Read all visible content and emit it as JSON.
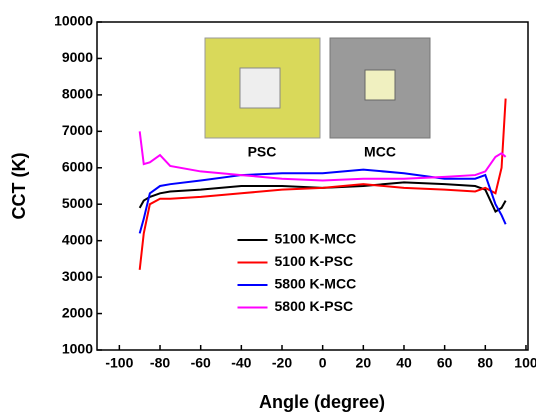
{
  "chart_data": {
    "type": "line",
    "xlabel": "Angle (degree)",
    "ylabel": "CCT (K)",
    "insets": [
      "PSC",
      "MCC"
    ],
    "x": [
      -90,
      -88,
      -85,
      -80,
      -75,
      -60,
      -40,
      -20,
      0,
      20,
      40,
      60,
      75,
      80,
      85,
      88,
      90
    ],
    "series": [
      {
        "name": "5100 K-MCC",
        "color": "#000000",
        "values": [
          4900,
          5100,
          5200,
          5300,
          5350,
          5400,
          5500,
          5500,
          5450,
          5500,
          5600,
          5550,
          5500,
          5400,
          4800,
          4900,
          5100
        ]
      },
      {
        "name": "5100 K-PSC",
        "color": "#ff0000",
        "values": [
          3200,
          4200,
          5000,
          5150,
          5150,
          5200,
          5300,
          5400,
          5450,
          5550,
          5450,
          5400,
          5350,
          5450,
          5300,
          6000,
          7900
        ]
      },
      {
        "name": "5800 K-MCC",
        "color": "#0000ff",
        "values": [
          4200,
          4600,
          5300,
          5500,
          5550,
          5650,
          5800,
          5850,
          5850,
          5950,
          5850,
          5700,
          5700,
          5800,
          5000,
          4700,
          4450
        ]
      },
      {
        "name": "5800 K-PSC",
        "color": "#ff00ff",
        "values": [
          7000,
          6100,
          6150,
          6350,
          6050,
          5900,
          5800,
          5700,
          5650,
          5700,
          5700,
          5750,
          5800,
          5900,
          6300,
          6400,
          6300
        ]
      }
    ],
    "xlim": [
      -111,
      101
    ],
    "ylim": [
      1000,
      10000
    ],
    "xticks": [
      -100,
      -80,
      -60,
      -40,
      -20,
      0,
      20,
      40,
      60,
      80,
      100
    ],
    "yticks": [
      1000,
      2000,
      3000,
      4000,
      5000,
      6000,
      7000,
      8000,
      9000,
      10000
    ],
    "legend": "lower center"
  }
}
